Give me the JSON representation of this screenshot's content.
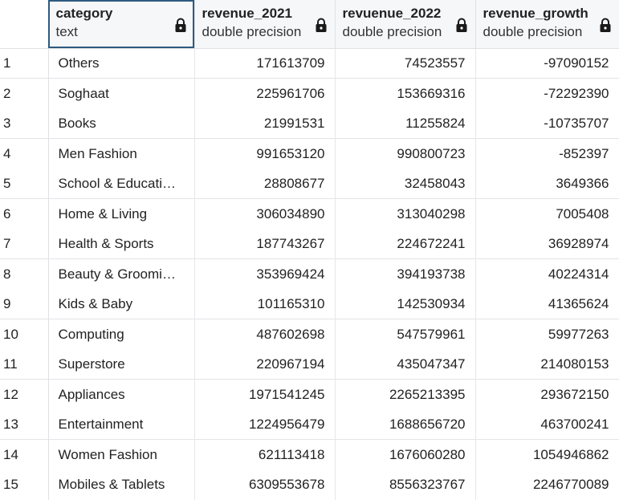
{
  "columns": [
    {
      "name": "category",
      "type": "text"
    },
    {
      "name": "revenue_2021",
      "type": "double precision"
    },
    {
      "name": "revuenue_2022",
      "type": "double precision"
    },
    {
      "name": "revenue_growth",
      "type": "double precision"
    }
  ],
  "rows": [
    {
      "index": "1",
      "category": "Others",
      "revenue_2021": "171613709",
      "revuenue_2022": "74523557",
      "revenue_growth": "-97090152"
    },
    {
      "index": "2",
      "category": "Soghaat",
      "revenue_2021": "225961706",
      "revuenue_2022": "153669316",
      "revenue_growth": "-72292390"
    },
    {
      "index": "3",
      "category": "Books",
      "revenue_2021": "21991531",
      "revuenue_2022": "11255824",
      "revenue_growth": "-10735707"
    },
    {
      "index": "4",
      "category": "Men Fashion",
      "revenue_2021": "991653120",
      "revuenue_2022": "990800723",
      "revenue_growth": "-852397"
    },
    {
      "index": "5",
      "category": "School & Educati…",
      "revenue_2021": "28808677",
      "revuenue_2022": "32458043",
      "revenue_growth": "3649366"
    },
    {
      "index": "6",
      "category": "Home & Living",
      "revenue_2021": "306034890",
      "revuenue_2022": "313040298",
      "revenue_growth": "7005408"
    },
    {
      "index": "7",
      "category": "Health & Sports",
      "revenue_2021": "187743267",
      "revuenue_2022": "224672241",
      "revenue_growth": "36928974"
    },
    {
      "index": "8",
      "category": "Beauty & Groomi…",
      "revenue_2021": "353969424",
      "revuenue_2022": "394193738",
      "revenue_growth": "40224314"
    },
    {
      "index": "9",
      "category": "Kids & Baby",
      "revenue_2021": "101165310",
      "revuenue_2022": "142530934",
      "revenue_growth": "41365624"
    },
    {
      "index": "10",
      "category": "Computing",
      "revenue_2021": "487602698",
      "revuenue_2022": "547579961",
      "revenue_growth": "59977263"
    },
    {
      "index": "11",
      "category": "Superstore",
      "revenue_2021": "220967194",
      "revuenue_2022": "435047347",
      "revenue_growth": "214080153"
    },
    {
      "index": "12",
      "category": "Appliances",
      "revenue_2021": "1971541245",
      "revuenue_2022": "2265213395",
      "revenue_growth": "293672150"
    },
    {
      "index": "13",
      "category": "Entertainment",
      "revenue_2021": "1224956479",
      "revuenue_2022": "1688656720",
      "revenue_growth": "463700241"
    },
    {
      "index": "14",
      "category": "Women Fashion",
      "revenue_2021": "621113418",
      "revuenue_2022": "1676060280",
      "revenue_growth": "1054946862"
    },
    {
      "index": "15",
      "category": "Mobiles & Tablets",
      "revenue_2021": "6309553678",
      "revuenue_2022": "8556323767",
      "revenue_growth": "2246770089"
    }
  ],
  "icons": {
    "column_lock": "lock-icon"
  },
  "colors": {
    "selected_border": "#2e5a80",
    "header_bg": "#f6f7f9",
    "grid_line": "#dfe1e5"
  }
}
